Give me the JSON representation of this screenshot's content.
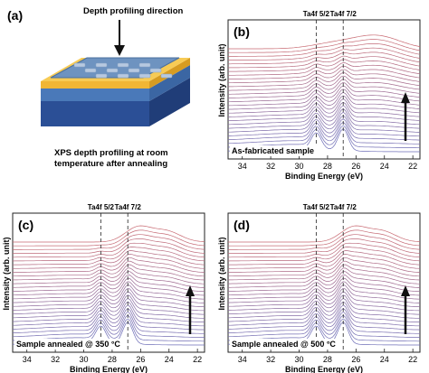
{
  "figure": {
    "panel_a": {
      "label": "(a)",
      "top_caption": "Depth profiling direction",
      "bottom_caption_line1": "XPS depth profiling at room",
      "bottom_caption_line2": "temperature after annealing",
      "colors": {
        "top_layer": "#7fa3c8",
        "gold_layer": "#f2b836",
        "blue_layer": "#294f9a",
        "dots": "#b7c9e0"
      }
    },
    "panels": [
      {
        "label": "(b)",
        "sample_tag": "As-fabricated sample",
        "arrow_side": "right"
      },
      {
        "label": "(c)",
        "sample_tag": "Sample annealed @ 350 °C",
        "arrow_side": "right"
      },
      {
        "label": "(d)",
        "sample_tag": "Sample annealed @ 500 °C",
        "arrow_side": "right"
      }
    ],
    "common": {
      "peak_labels": [
        "Ta4f 5/2",
        "Ta4f 7/2"
      ],
      "xlabel": "Binding Energy (eV)",
      "ylabel": "Intensity (arb. unit)",
      "xticks": [
        "34",
        "32",
        "30",
        "28",
        "26",
        "24",
        "22"
      ]
    }
  },
  "chart_data": [
    {
      "type": "line",
      "panel": "(b)",
      "xlabel": "Binding Energy (eV)",
      "ylabel": "Intensity (arb. unit)",
      "xlim": [
        35,
        21.5
      ],
      "x_reversed": true,
      "xticks": [
        34,
        32,
        30,
        28,
        26,
        24,
        22
      ],
      "reference_lines_x": [
        28.8,
        26.9
      ],
      "reference_labels": [
        "Ta4f 5/2",
        "Ta4f 7/2"
      ],
      "annotation": "As-fabricated sample",
      "curve_count": 28,
      "color_gradient": [
        "#6f6fb8",
        "#c86a72"
      ],
      "trend": "bottom curves show Ta4f doublet at 28.8 and 26.9 eV; top curves broad band around 23-25 eV"
    },
    {
      "type": "line",
      "panel": "(c)",
      "xlabel": "Binding Energy (eV)",
      "ylabel": "Intensity (arb. unit)",
      "xlim": [
        35,
        21.5
      ],
      "x_reversed": true,
      "xticks": [
        34,
        32,
        30,
        28,
        26,
        24,
        22
      ],
      "reference_lines_x": [
        28.8,
        26.9
      ],
      "reference_labels": [
        "Ta4f 5/2",
        "Ta4f 7/2"
      ],
      "annotation": "Sample annealed @ 350 °C",
      "curve_count": 28,
      "color_gradient": [
        "#6f6fb8",
        "#c86a72"
      ],
      "trend": "doublet at bottom, peaks near 26 and 24 eV in upper curves"
    },
    {
      "type": "line",
      "panel": "(d)",
      "xlabel": "Binding Energy (eV)",
      "ylabel": "Intensity (arb. unit)",
      "xlim": [
        35,
        21.5
      ],
      "x_reversed": true,
      "xticks": [
        34,
        32,
        30,
        28,
        26,
        24,
        22
      ],
      "reference_lines_x": [
        28.8,
        26.9
      ],
      "reference_labels": [
        "Ta4f 5/2",
        "Ta4f 7/2"
      ],
      "annotation": "Sample annealed @ 500 °C",
      "curve_count": 28,
      "color_gradient": [
        "#6f6fb8",
        "#c86a72"
      ],
      "trend": "doublet at bottom, broad peaks near 26 and 24 eV in upper curves"
    }
  ]
}
